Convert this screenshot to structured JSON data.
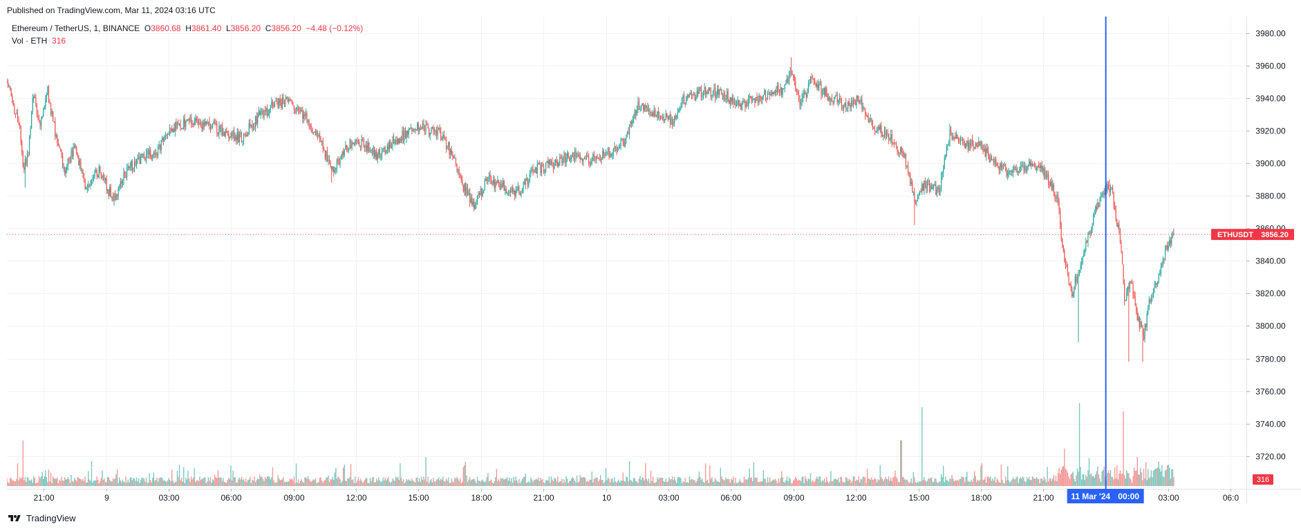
{
  "header": {
    "published": "Published on TradingView.com, Mar 11, 2024 03:16 UTC"
  },
  "legend": {
    "symbol": "Ethereum / TetherUS, 1, BINANCE",
    "o_label": "O",
    "o_value": "3860.68",
    "h_label": "H",
    "h_value": "3861.40",
    "l_label": "L",
    "l_value": "3856.20",
    "c_label": "C",
    "c_value": "3856.20",
    "change": "−4.48 (−0.12%)",
    "vol_label": "Vol · ETH",
    "vol_value": "316"
  },
  "price_tag": {
    "symbol": "ETHUSDT",
    "price": "3856.20",
    "volume": "316"
  },
  "crosshair_label": {
    "date": "11 Mar '24",
    "time": "00:00"
  },
  "footer": {
    "brand": "TradingView"
  },
  "colors": {
    "up": "#26a69a",
    "down": "#ef5350",
    "vol_up": "#7cc7bf",
    "vol_down": "#f49a97",
    "price_line": "#f23645",
    "crosshair": "#2962ff",
    "grid": "#f0f3fa"
  },
  "chart_data": {
    "type": "candlestick",
    "title": "Ethereum / TetherUS, 1, BINANCE",
    "ylim": [
      3700,
      3990
    ],
    "y_ticks": [
      3720,
      3740,
      3760,
      3780,
      3800,
      3820,
      3840,
      3860,
      3880,
      3900,
      3920,
      3940,
      3960,
      3980
    ],
    "y_tick_labels": [
      "3720.00",
      "3740.00",
      "3760.00",
      "3780.00",
      "3800.00",
      "3820.00",
      "3840.00",
      "3860.00",
      "3880.00",
      "3900.00",
      "3920.00",
      "3940.00",
      "3960.00",
      "3980.00"
    ],
    "x_axis": {
      "start": "2024-03-08T19:14",
      "end": "2024-03-11T06:45",
      "ticks": [
        {
          "t": "2024-03-08T21:00",
          "label": "21:00"
        },
        {
          "t": "2024-03-09T00:00",
          "label": "9"
        },
        {
          "t": "2024-03-09T03:00",
          "label": "03:00"
        },
        {
          "t": "2024-03-09T06:00",
          "label": "06:00"
        },
        {
          "t": "2024-03-09T09:00",
          "label": "09:00"
        },
        {
          "t": "2024-03-09T12:00",
          "label": "12:00"
        },
        {
          "t": "2024-03-09T15:00",
          "label": "15:00"
        },
        {
          "t": "2024-03-09T18:00",
          "label": "18:00"
        },
        {
          "t": "2024-03-09T21:00",
          "label": "21:00"
        },
        {
          "t": "2024-03-10T00:00",
          "label": "10"
        },
        {
          "t": "2024-03-10T03:00",
          "label": "03:00"
        },
        {
          "t": "2024-03-10T06:00",
          "label": "06:00"
        },
        {
          "t": "2024-03-10T09:00",
          "label": "09:00"
        },
        {
          "t": "2024-03-10T12:00",
          "label": "12:00"
        },
        {
          "t": "2024-03-10T15:00",
          "label": "15:00"
        },
        {
          "t": "2024-03-10T18:00",
          "label": "18:00"
        },
        {
          "t": "2024-03-10T21:00",
          "label": "21:00"
        },
        {
          "t": "2024-03-11T03:00",
          "label": "03:00"
        },
        {
          "t": "2024-03-11T06:00",
          "label": "06:0"
        }
      ]
    },
    "crosshair_time": "2024-03-11T00:00",
    "last_price": 3856.2,
    "price_path": [
      [
        "2024-03-08T19:14",
        3950
      ],
      [
        "2024-03-08T19:30",
        3935
      ],
      [
        "2024-03-08T19:50",
        3925
      ],
      [
        "2024-03-08T20:00",
        3895
      ],
      [
        "2024-03-08T20:15",
        3905
      ],
      [
        "2024-03-08T20:30",
        3942
      ],
      [
        "2024-03-08T20:50",
        3925
      ],
      [
        "2024-03-08T21:10",
        3945
      ],
      [
        "2024-03-08T21:40",
        3912
      ],
      [
        "2024-03-08T22:00",
        3895
      ],
      [
        "2024-03-08T22:30",
        3910
      ],
      [
        "2024-03-08T23:00",
        3885
      ],
      [
        "2024-03-08T23:40",
        3895
      ],
      [
        "2024-03-09T00:20",
        3878
      ],
      [
        "2024-03-09T01:00",
        3895
      ],
      [
        "2024-03-09T01:30",
        3902
      ],
      [
        "2024-03-09T02:30",
        3908
      ],
      [
        "2024-03-09T03:10",
        3922
      ],
      [
        "2024-03-09T04:00",
        3925
      ],
      [
        "2024-03-09T05:00",
        3923
      ],
      [
        "2024-03-09T06:30",
        3915
      ],
      [
        "2024-03-09T07:15",
        3928
      ],
      [
        "2024-03-09T08:00",
        3935
      ],
      [
        "2024-03-09T08:40",
        3938
      ],
      [
        "2024-03-09T09:30",
        3930
      ],
      [
        "2024-03-09T10:20",
        3912
      ],
      [
        "2024-03-09T10:50",
        3895
      ],
      [
        "2024-03-09T11:30",
        3910
      ],
      [
        "2024-03-09T12:20",
        3913
      ],
      [
        "2024-03-09T13:00",
        3905
      ],
      [
        "2024-03-09T14:00",
        3915
      ],
      [
        "2024-03-09T15:00",
        3923
      ],
      [
        "2024-03-09T16:00",
        3918
      ],
      [
        "2024-03-09T16:40",
        3905
      ],
      [
        "2024-03-09T17:10",
        3885
      ],
      [
        "2024-03-09T17:40",
        3875
      ],
      [
        "2024-03-09T18:20",
        3890
      ],
      [
        "2024-03-09T19:10",
        3885
      ],
      [
        "2024-03-09T19:50",
        3882
      ],
      [
        "2024-03-09T20:30",
        3895
      ],
      [
        "2024-03-09T21:30",
        3900
      ],
      [
        "2024-03-09T22:20",
        3905
      ],
      [
        "2024-03-09T23:20",
        3902
      ],
      [
        "2024-03-10T00:30",
        3908
      ],
      [
        "2024-03-10T01:00",
        3915
      ],
      [
        "2024-03-10T01:30",
        3935
      ],
      [
        "2024-03-10T02:30",
        3930
      ],
      [
        "2024-03-10T03:10",
        3925
      ],
      [
        "2024-03-10T03:40",
        3938
      ],
      [
        "2024-03-10T04:40",
        3945
      ],
      [
        "2024-03-10T05:40",
        3942
      ],
      [
        "2024-03-10T06:30",
        3935
      ],
      [
        "2024-03-10T07:30",
        3942
      ],
      [
        "2024-03-10T08:30",
        3945
      ],
      [
        "2024-03-10T08:55",
        3958
      ],
      [
        "2024-03-10T09:20",
        3935
      ],
      [
        "2024-03-10T09:50",
        3950
      ],
      [
        "2024-03-10T10:50",
        3940
      ],
      [
        "2024-03-10T11:30",
        3935
      ],
      [
        "2024-03-10T12:10",
        3940
      ],
      [
        "2024-03-10T12:40",
        3925
      ],
      [
        "2024-03-10T13:40",
        3915
      ],
      [
        "2024-03-10T14:20",
        3905
      ],
      [
        "2024-03-10T14:50",
        3875
      ],
      [
        "2024-03-10T15:20",
        3888
      ],
      [
        "2024-03-10T16:00",
        3882
      ],
      [
        "2024-03-10T16:30",
        3918
      ],
      [
        "2024-03-10T17:10",
        3912
      ],
      [
        "2024-03-10T18:00",
        3910
      ],
      [
        "2024-03-10T18:40",
        3900
      ],
      [
        "2024-03-10T19:20",
        3895
      ],
      [
        "2024-03-10T20:20",
        3898
      ],
      [
        "2024-03-10T21:00",
        3895
      ],
      [
        "2024-03-10T21:40",
        3880
      ],
      [
        "2024-03-10T22:00",
        3840
      ],
      [
        "2024-03-10T22:20",
        3820
      ],
      [
        "2024-03-10T22:45",
        3835
      ],
      [
        "2024-03-10T23:10",
        3855
      ],
      [
        "2024-03-10T23:30",
        3870
      ],
      [
        "2024-03-10T23:50",
        3882
      ],
      [
        "2024-03-11T00:15",
        3885
      ],
      [
        "2024-03-11T00:40",
        3855
      ],
      [
        "2024-03-11T00:55",
        3815
      ],
      [
        "2024-03-11T01:10",
        3830
      ],
      [
        "2024-03-11T01:30",
        3805
      ],
      [
        "2024-03-11T01:50",
        3795
      ],
      [
        "2024-03-11T02:10",
        3820
      ],
      [
        "2024-03-11T02:35",
        3832
      ],
      [
        "2024-03-11T02:55",
        3848
      ],
      [
        "2024-03-11T03:16",
        3856.2
      ]
    ],
    "spikes": [
      {
        "t": "2024-03-08T20:05",
        "low": 3885
      },
      {
        "t": "2024-03-09T10:50",
        "low": 3888
      },
      {
        "t": "2024-03-10T14:50",
        "low": 3862
      },
      {
        "t": "2024-03-10T22:40",
        "low": 3790
      },
      {
        "t": "2024-03-11T01:05",
        "low": 3778
      },
      {
        "t": "2024-03-11T01:45",
        "low": 3778
      },
      {
        "t": "2024-03-10T08:55",
        "high": 3965
      },
      {
        "t": "2024-03-11T00:10",
        "high": 3890
      }
    ],
    "volume_spikes": [
      {
        "t": "2024-03-08T20:00",
        "v": 0.55
      },
      {
        "t": "2024-03-09T15:20",
        "v": 0.35
      },
      {
        "t": "2024-03-10T14:10",
        "v": 0.55
      },
      {
        "t": "2024-03-10T15:10",
        "v": 0.95
      },
      {
        "t": "2024-03-10T22:00",
        "v": 0.45
      },
      {
        "t": "2024-03-10T22:45",
        "v": 1.0
      },
      {
        "t": "2024-03-11T00:50",
        "v": 0.9
      },
      {
        "t": "2024-03-11T01:30",
        "v": 0.35
      }
    ]
  }
}
